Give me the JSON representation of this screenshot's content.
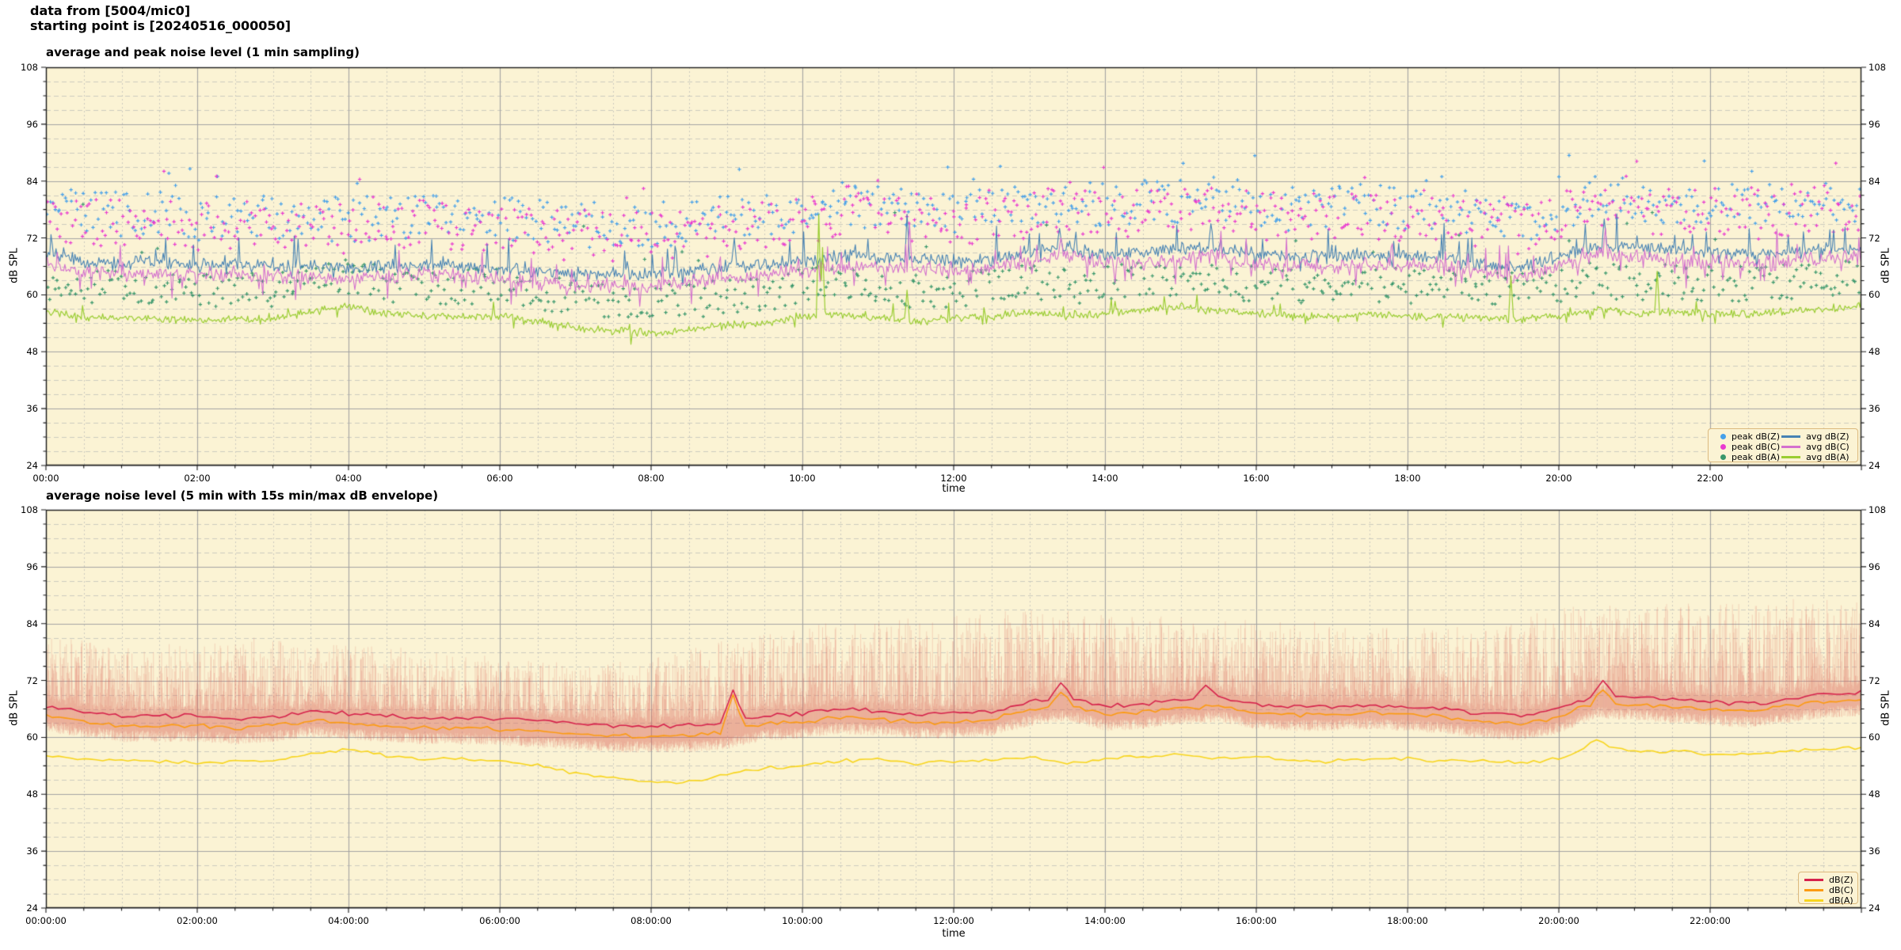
{
  "header": {
    "line1": "data from [5004/mic0]",
    "line2": "starting point is [20240516_000050]"
  },
  "colors": {
    "figure_bg": "#FFFFFF",
    "plot_bg": "#FBF3D4",
    "grid_major": "#A3A3A3",
    "grid_minor": "#C6C6BC",
    "spine": "#1A1A1A",
    "tick": "#1A1A1A",
    "legend_bg": "#FBF3D4",
    "legend_border": "#DCB97E",
    "text": "#000000"
  },
  "render_seed": 42,
  "chart_data": [
    {
      "type": "line",
      "title": "average and peak noise level (1 min sampling)",
      "xlabel": "time",
      "ylabel": "dB SPL",
      "ylabel_right": "dB SPL",
      "ylim": [
        24,
        108
      ],
      "yticks": [
        24,
        36,
        48,
        60,
        72,
        84,
        96,
        108
      ],
      "minor_y_step_db": 3,
      "x_hours": [
        0,
        24
      ],
      "xtick_hours": [
        0,
        2,
        4,
        6,
        8,
        10,
        12,
        14,
        16,
        18,
        20,
        22
      ],
      "xtick_labels": [
        "00:00",
        "02:00",
        "04:00",
        "06:00",
        "08:00",
        "10:00",
        "12:00",
        "14:00",
        "16:00",
        "18:00",
        "20:00",
        "22:00"
      ],
      "minor_x_step_hours": 0.5,
      "grid": true,
      "legend_position": "lower right",
      "legend_columns": 2,
      "legend_order": [
        "peak dB(Z)",
        "peak dB(C)",
        "peak dB(A)",
        "avg dB(Z)",
        "avg dB(C)",
        "avg dB(A)"
      ],
      "anchor_step_hours": 0.5,
      "sample_step_minutes": 1,
      "series": [
        {
          "name": "peak dB(Z)",
          "kind": "scatter",
          "color": "#45A0EA",
          "base": "avg dB(Z)",
          "step_minutes": 2,
          "offset_min": 5.5,
          "offset_range": 9.5,
          "outlier_prob": 0.07,
          "outlier_amp": 8,
          "value_cap": 93
        },
        {
          "name": "peak dB(C)",
          "kind": "scatter",
          "color": "#E93AD0",
          "base": "avg dB(C)",
          "step_minutes": 2,
          "offset_min": 5.0,
          "offset_range": 10.5,
          "outlier_prob": 0.07,
          "outlier_amp": 8,
          "value_cap": 93
        },
        {
          "name": "peak dB(A)",
          "kind": "scatter",
          "color": "#38976B",
          "base": "avg dB(A)",
          "step_minutes": 2,
          "offset_min": 2.5,
          "offset_range": 7.5,
          "outlier_prob": 0.03,
          "outlier_amp": 14,
          "value_cap": 88
        },
        {
          "name": "avg dB(Z)",
          "kind": "line",
          "color": "#4682B4",
          "width": 1.1,
          "jitter": 1.7,
          "spike_prob": 0.045,
          "spike_amp": 4.5,
          "down_spike_prob": 0.02,
          "down_spike_amp": 2.0,
          "spikes": [
            [
              9.1,
              72
            ],
            [
              11.39,
              77
            ],
            [
              13.4,
              74
            ],
            [
              15.4,
              75
            ],
            [
              20.6,
              76
            ]
          ],
          "anchors": [
            68.5,
            67,
            66.5,
            67,
            66,
            66.5,
            66,
            66,
            65.5,
            66,
            66.5,
            66,
            65.5,
            65,
            64.5,
            64.5,
            64.5,
            65,
            66,
            66.5,
            67,
            68,
            68,
            67.5,
            67,
            67.5,
            69,
            70,
            68.5,
            69,
            69.5,
            70,
            68.5,
            68,
            68,
            68.5,
            68,
            68,
            66.5,
            65.5,
            68,
            70.5,
            70,
            69.5,
            69,
            68.5,
            69,
            69.5,
            70
          ]
        },
        {
          "name": "avg dB(C)",
          "kind": "line",
          "color": "#D470CE",
          "width": 1.1,
          "jitter": 1.9,
          "spike_prob": 0.035,
          "spike_amp": 4.0,
          "down_spike_prob": 0.05,
          "down_spike_amp": 3.5,
          "spikes": [
            [
              11.41,
              75
            ],
            [
              13.42,
              72
            ],
            [
              20.62,
              74
            ]
          ],
          "anchors": [
            66.5,
            65,
            64.5,
            65,
            64,
            64.5,
            64,
            64,
            63.5,
            64,
            64.5,
            64,
            63.5,
            62.5,
            62,
            62,
            62,
            62.5,
            63.5,
            64.5,
            65,
            66,
            66,
            65.5,
            65,
            65.5,
            67,
            68.5,
            66.5,
            67,
            67.5,
            68.5,
            66.5,
            66,
            66,
            66.5,
            66,
            66,
            64.5,
            63.5,
            66,
            68.5,
            68,
            67.5,
            67,
            66.5,
            67,
            67.5,
            68
          ]
        },
        {
          "name": "avg dB(A)",
          "kind": "line",
          "color": "#9ACD32",
          "width": 1.2,
          "jitter": 1.0,
          "spike_prob": 0.02,
          "spike_amp": 2.5,
          "down_spike_prob": 0.02,
          "down_spike_amp": 1.5,
          "spikes": [
            [
              10.21,
              77
            ],
            [
              10.27,
              70
            ],
            [
              11.38,
              61
            ],
            [
              19.37,
              64
            ],
            [
              21.3,
              65
            ]
          ],
          "anchors": [
            56.5,
            55.5,
            55,
            55,
            54.5,
            55,
            55,
            56.5,
            57.5,
            56,
            55.5,
            55.5,
            55.5,
            54.5,
            53,
            52.5,
            52,
            52.5,
            53.5,
            54,
            55.5,
            56,
            55,
            54.5,
            55,
            55.5,
            56.5,
            55.5,
            56,
            57,
            57.5,
            56.5,
            56,
            55.5,
            55.5,
            56,
            55.5,
            55.5,
            55,
            55,
            55.5,
            57,
            56,
            56.5,
            56,
            56,
            56.5,
            57,
            57.5
          ]
        }
      ]
    },
    {
      "type": "line",
      "title": "average noise level (5 min with 15s min/max dB envelope)",
      "xlabel": "time",
      "ylabel": "dB SPL",
      "ylabel_right": "dB SPL",
      "ylim": [
        24,
        108
      ],
      "yticks": [
        24,
        36,
        48,
        60,
        72,
        84,
        96,
        108
      ],
      "minor_y_step_db": 3,
      "x_hours": [
        0,
        24
      ],
      "xtick_hours": [
        0,
        2,
        4,
        6,
        8,
        10,
        12,
        14,
        16,
        18,
        20,
        22
      ],
      "xtick_labels": [
        "00:00:00",
        "02:00:00",
        "04:00:00",
        "06:00:00",
        "08:00:00",
        "10:00:00",
        "12:00:00",
        "14:00:00",
        "16:00:00",
        "18:00:00",
        "20:00:00",
        "22:00:00"
      ],
      "minor_x_step_hours": 0.5,
      "grid": true,
      "legend_position": "lower right",
      "legend_columns": 1,
      "legend_order": [
        "dB(Z)",
        "dB(C)",
        "dB(A)"
      ],
      "anchor_step_hours": 0.5,
      "sample_step_minutes": 5,
      "envelope": {
        "name": "15s min/max envelope",
        "color": "#DC6E60",
        "alpha": 0.27,
        "step_seconds": 15,
        "top_base_series": "dB(Z)",
        "bottom_base_series": "dB(C)",
        "top_anchor_step_hours": 1,
        "shape_pow": 2.3,
        "top_anchors": [
          80,
          80,
          79,
          80,
          79,
          77,
          76,
          75,
          76,
          80,
          83,
          84,
          85,
          86,
          85,
          84,
          84,
          83,
          82,
          82,
          86,
          88,
          87,
          88,
          88
        ]
      },
      "series": [
        {
          "name": "dB(Z)",
          "kind": "line",
          "color": "#D6224C",
          "width": 1.6,
          "jitter": 0.55,
          "spike_prob": 0.0,
          "spike_amp": 0,
          "down_spike_prob": 0.0,
          "down_spike_amp": 0,
          "spikes": [
            [
              9.1,
              70
            ],
            [
              13.4,
              71.5
            ],
            [
              15.35,
              71
            ],
            [
              20.55,
              72
            ]
          ],
          "anchors": [
            66.5,
            65.5,
            64.5,
            64.5,
            64.5,
            64,
            64.5,
            65.5,
            65,
            64.5,
            64,
            64,
            64,
            63.5,
            63,
            62.5,
            62.5,
            62.5,
            63,
            64.5,
            65,
            66,
            65.5,
            65,
            65,
            65.5,
            67.5,
            68.5,
            66.5,
            67,
            68,
            68.5,
            67,
            66.5,
            66.5,
            67,
            66.5,
            66,
            65,
            64.5,
            66,
            69,
            68.5,
            68,
            67.5,
            67,
            68,
            69,
            69.5
          ]
        },
        {
          "name": "dB(C)",
          "kind": "line",
          "color": "#FC9B12",
          "width": 1.6,
          "jitter": 0.6,
          "spike_prob": 0.0,
          "spike_amp": 0,
          "down_spike_prob": 0.0,
          "down_spike_amp": 0,
          "spikes": [
            [
              9.1,
              69
            ],
            [
              13.4,
              69.5
            ],
            [
              20.55,
              70
            ]
          ],
          "anchors": [
            64.5,
            63.5,
            62.5,
            62.5,
            62.5,
            62,
            62.5,
            63.5,
            63,
            62.5,
            62,
            62,
            61.8,
            61.2,
            60.8,
            60.3,
            60.3,
            60.3,
            61,
            62.8,
            63.2,
            64.2,
            63.8,
            63.2,
            63.2,
            63.8,
            65.8,
            67,
            64.8,
            65.2,
            66.2,
            66.8,
            65.2,
            64.8,
            64.8,
            65.2,
            64.8,
            64.2,
            63.2,
            62.8,
            64.2,
            67.5,
            67,
            66.5,
            66,
            65.5,
            66.5,
            67.5,
            68
          ]
        },
        {
          "name": "dB(A)",
          "kind": "line",
          "color": "#F8D51C",
          "width": 1.6,
          "jitter": 0.45,
          "spike_prob": 0.0,
          "spike_amp": 0,
          "down_spike_prob": 0.0,
          "down_spike_amp": 0,
          "spikes": [
            [
              20.5,
              59.5
            ]
          ],
          "anchors": [
            56,
            55.5,
            55,
            55,
            54.5,
            55,
            55,
            56.5,
            57.5,
            56,
            55.5,
            55.5,
            55,
            54,
            52.5,
            51.5,
            50.5,
            50.5,
            52,
            53.5,
            54,
            55,
            55.5,
            54.5,
            55,
            55,
            56,
            54.5,
            55.5,
            56,
            56.5,
            55.5,
            56,
            55,
            55,
            55.5,
            55.5,
            55,
            55,
            54.5,
            55.5,
            58.5,
            57,
            57,
            56.5,
            56.5,
            57,
            57.5,
            58
          ]
        }
      ]
    }
  ]
}
